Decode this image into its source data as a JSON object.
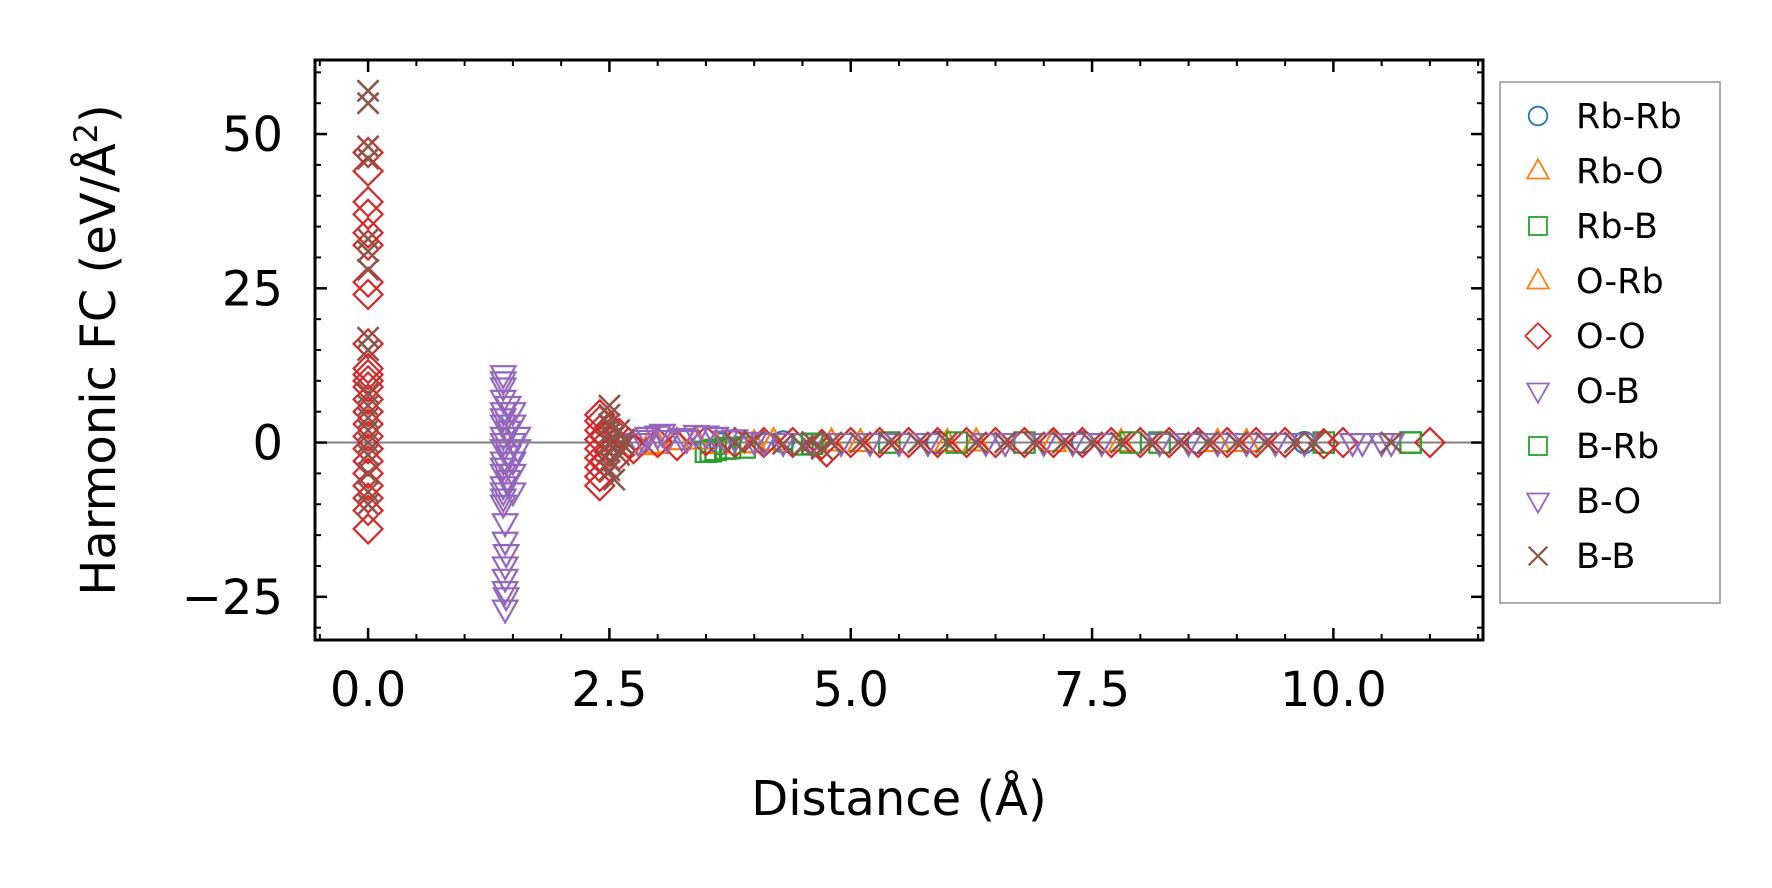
{
  "chart_data": {
    "type": "scatter",
    "title": "",
    "xlabel": "Distance (Å)",
    "ylabel_prefix": "Harmonic FC (eV/Å",
    "ylabel_sup": "2",
    "ylabel_suffix": ")",
    "xlim": [
      -0.55,
      11.55
    ],
    "ylim": [
      -32,
      62
    ],
    "xticks": [
      0.0,
      2.5,
      5.0,
      7.5,
      10.0
    ],
    "xtick_labels": [
      "0.0",
      "2.5",
      "5.0",
      "7.5",
      "10.0"
    ],
    "yticks": [
      -25,
      0,
      25,
      50
    ],
    "ytick_labels": [
      "−25",
      "0",
      "25",
      "50"
    ],
    "x_minor_step": 0.5,
    "y_minor_step": 5,
    "zero_line": true,
    "legend_position": "outside-right",
    "series": [
      {
        "name": "Rb-Rb",
        "marker": "circle",
        "color": "#1f77b4",
        "points": [
          [
            3.65,
            -0.2
          ],
          [
            4.3,
            0.1
          ],
          [
            5.9,
            0.0
          ],
          [
            7.4,
            0.05
          ],
          [
            8.6,
            0.0
          ],
          [
            9.7,
            0.0
          ]
        ]
      },
      {
        "name": "Rb-O",
        "marker": "triangle-up",
        "color": "#ff7f0e",
        "points": [
          [
            2.9,
            -0.5
          ],
          [
            3.2,
            0.3
          ],
          [
            3.6,
            -0.3
          ],
          [
            4.2,
            0.2
          ],
          [
            5.1,
            0.0
          ],
          [
            6.3,
            0.1
          ],
          [
            7.8,
            0.0
          ],
          [
            9.1,
            0.0
          ]
        ]
      },
      {
        "name": "Rb-B",
        "marker": "square",
        "color": "#2ca02c",
        "points": [
          [
            3.5,
            -1.5
          ],
          [
            3.6,
            -1.2
          ],
          [
            3.7,
            -1.0
          ],
          [
            3.9,
            -0.8
          ],
          [
            4.5,
            -0.3
          ],
          [
            5.4,
            0.0
          ],
          [
            6.8,
            0.0
          ],
          [
            8.2,
            0.0
          ],
          [
            9.9,
            0.0
          ],
          [
            10.8,
            0.0
          ]
        ]
      },
      {
        "name": "O-Rb",
        "marker": "triangle-up",
        "color": "#ff7f0e",
        "points": [
          [
            3.0,
            -0.3
          ],
          [
            3.4,
            0.4
          ],
          [
            4.0,
            -0.2
          ],
          [
            4.8,
            0.1
          ],
          [
            6.0,
            0.0
          ],
          [
            7.1,
            0.0
          ],
          [
            8.8,
            0.0
          ]
        ]
      },
      {
        "name": "O-O",
        "marker": "diamond",
        "color": "#d62728",
        "points": [
          [
            0,
            -14
          ],
          [
            0,
            -11
          ],
          [
            0,
            -9
          ],
          [
            0,
            -7
          ],
          [
            0,
            -5
          ],
          [
            0,
            -3
          ],
          [
            0,
            -1
          ],
          [
            0,
            1
          ],
          [
            0,
            3
          ],
          [
            0,
            5
          ],
          [
            0,
            7
          ],
          [
            0,
            9
          ],
          [
            0,
            10
          ],
          [
            0,
            11
          ],
          [
            0,
            12
          ],
          [
            0,
            16
          ],
          [
            0,
            24
          ],
          [
            0,
            26
          ],
          [
            0,
            32
          ],
          [
            0,
            34
          ],
          [
            0,
            37
          ],
          [
            0,
            39
          ],
          [
            0,
            44
          ],
          [
            0,
            47
          ],
          [
            2.4,
            -7
          ],
          [
            2.4,
            -5.5
          ],
          [
            2.4,
            -4
          ],
          [
            2.4,
            -2.5
          ],
          [
            2.4,
            -1
          ],
          [
            2.4,
            0.5
          ],
          [
            2.4,
            2
          ],
          [
            2.4,
            3.5
          ],
          [
            2.4,
            4.5
          ],
          [
            2.45,
            -3
          ],
          [
            2.45,
            1
          ],
          [
            2.5,
            -1.5
          ],
          [
            2.5,
            2.5
          ],
          [
            2.55,
            0
          ],
          [
            2.6,
            -2
          ],
          [
            2.6,
            1.5
          ],
          [
            2.7,
            0
          ],
          [
            2.75,
            -1
          ],
          [
            3.0,
            0
          ],
          [
            3.2,
            -0.5
          ],
          [
            3.5,
            0.3
          ],
          [
            3.8,
            0
          ],
          [
            4.1,
            0
          ],
          [
            4.4,
            0
          ],
          [
            4.7,
            -0.3
          ],
          [
            4.75,
            -1.5
          ],
          [
            5.0,
            0
          ],
          [
            5.3,
            0
          ],
          [
            5.6,
            0
          ],
          [
            5.9,
            0
          ],
          [
            6.2,
            0
          ],
          [
            6.5,
            0
          ],
          [
            6.8,
            0
          ],
          [
            7.1,
            0
          ],
          [
            7.4,
            0
          ],
          [
            7.7,
            0
          ],
          [
            8.0,
            0
          ],
          [
            8.3,
            0
          ],
          [
            8.6,
            0
          ],
          [
            8.9,
            0
          ],
          [
            9.2,
            0
          ],
          [
            9.5,
            0
          ],
          [
            9.9,
            -0.2
          ],
          [
            10.1,
            0
          ],
          [
            11.0,
            0
          ]
        ]
      },
      {
        "name": "O-B",
        "marker": "triangle-down",
        "color": "#9467bd",
        "points": [
          [
            1.4,
            11
          ],
          [
            1.4,
            9
          ],
          [
            1.4,
            7
          ],
          [
            1.4,
            5
          ],
          [
            1.4,
            3
          ],
          [
            1.4,
            1
          ],
          [
            1.4,
            -1
          ],
          [
            1.4,
            -3
          ],
          [
            1.4,
            -5
          ],
          [
            1.4,
            -7
          ],
          [
            1.4,
            -9
          ],
          [
            1.4,
            -10
          ],
          [
            1.42,
            -13
          ],
          [
            1.42,
            -16
          ],
          [
            1.42,
            -20
          ],
          [
            1.42,
            -22
          ],
          [
            1.42,
            -24
          ],
          [
            1.42,
            -27
          ],
          [
            1.45,
            6
          ],
          [
            1.45,
            2
          ],
          [
            1.45,
            -2
          ],
          [
            1.45,
            -6
          ],
          [
            1.5,
            3
          ],
          [
            1.5,
            0
          ],
          [
            1.5,
            -3
          ],
          [
            1.5,
            -8
          ],
          [
            1.55,
            1
          ],
          [
            1.55,
            -1
          ],
          [
            2.8,
            0
          ],
          [
            2.9,
            1
          ],
          [
            3.0,
            1.2
          ],
          [
            3.1,
            0.5
          ],
          [
            3.3,
            0.5
          ],
          [
            3.4,
            1.3
          ],
          [
            3.6,
            1
          ],
          [
            3.8,
            0.6
          ],
          [
            4.0,
            0.2
          ],
          [
            4.3,
            0
          ],
          [
            4.6,
            0
          ],
          [
            5.2,
            0
          ],
          [
            5.8,
            0
          ],
          [
            6.4,
            0
          ],
          [
            7.0,
            0
          ],
          [
            7.6,
            0
          ],
          [
            8.2,
            0
          ],
          [
            8.8,
            0
          ],
          [
            9.4,
            0
          ],
          [
            10.2,
            0
          ],
          [
            10.5,
            0
          ]
        ]
      },
      {
        "name": "B-Rb",
        "marker": "square",
        "color": "#2ca02c",
        "points": [
          [
            3.55,
            -1.4
          ],
          [
            3.75,
            -0.9
          ],
          [
            4.6,
            -0.2
          ],
          [
            6.1,
            0.0
          ],
          [
            7.9,
            0.0
          ],
          [
            10.8,
            0.0
          ]
        ]
      },
      {
        "name": "B-O",
        "marker": "triangle-down",
        "color": "#9467bd",
        "points": [
          [
            1.4,
            10
          ],
          [
            1.4,
            4
          ],
          [
            1.4,
            0
          ],
          [
            1.4,
            -4
          ],
          [
            1.4,
            -8
          ],
          [
            1.43,
            -18
          ],
          [
            1.43,
            -25
          ],
          [
            1.5,
            5
          ],
          [
            1.5,
            -5
          ],
          [
            2.85,
            0.5
          ],
          [
            3.05,
            1.5
          ],
          [
            3.25,
            0.8
          ],
          [
            3.5,
            1.2
          ],
          [
            3.7,
            0.4
          ],
          [
            4.1,
            0
          ],
          [
            4.9,
            0
          ],
          [
            5.5,
            0
          ],
          [
            6.6,
            0
          ],
          [
            7.3,
            0
          ],
          [
            8.5,
            0
          ],
          [
            9.1,
            0
          ],
          [
            9.7,
            0
          ],
          [
            10.3,
            0
          ],
          [
            10.6,
            0
          ]
        ]
      },
      {
        "name": "B-B",
        "marker": "x",
        "color": "#8c564b",
        "points": [
          [
            0,
            57
          ],
          [
            0,
            55
          ],
          [
            0,
            48
          ],
          [
            0,
            46
          ],
          [
            0,
            33
          ],
          [
            0,
            31
          ],
          [
            0,
            28
          ],
          [
            0,
            17
          ],
          [
            0,
            15
          ],
          [
            0,
            8
          ],
          [
            0,
            6
          ],
          [
            0,
            4
          ],
          [
            0,
            2
          ],
          [
            0,
            0
          ],
          [
            0,
            -2
          ],
          [
            0,
            -5
          ],
          [
            0,
            -8
          ],
          [
            0,
            -10
          ],
          [
            2.5,
            6
          ],
          [
            2.5,
            4.5
          ],
          [
            2.5,
            3
          ],
          [
            2.5,
            1.5
          ],
          [
            2.5,
            0
          ],
          [
            2.5,
            -1.5
          ],
          [
            2.5,
            -3
          ],
          [
            2.5,
            -4.5
          ],
          [
            2.55,
            -6
          ],
          [
            2.6,
            2
          ],
          [
            2.6,
            -2
          ],
          [
            2.65,
            0.5
          ],
          [
            2.65,
            -0.5
          ],
          [
            3.8,
            0
          ],
          [
            4.0,
            0.2
          ],
          [
            4.3,
            -0.2
          ],
          [
            4.5,
            -0.6
          ],
          [
            4.6,
            0.1
          ],
          [
            4.7,
            -1
          ],
          [
            4.8,
            0
          ],
          [
            5.1,
            0
          ],
          [
            5.4,
            0
          ],
          [
            5.7,
            0
          ],
          [
            6.0,
            0
          ],
          [
            6.3,
            0
          ],
          [
            6.6,
            0
          ],
          [
            6.9,
            0
          ],
          [
            7.2,
            0
          ],
          [
            7.5,
            0
          ],
          [
            7.8,
            0
          ],
          [
            8.1,
            0
          ],
          [
            8.4,
            0
          ],
          [
            8.7,
            0
          ],
          [
            9.0,
            0
          ],
          [
            9.3,
            0
          ],
          [
            9.6,
            0
          ],
          [
            9.8,
            0
          ],
          [
            10.6,
            0
          ]
        ]
      }
    ]
  }
}
